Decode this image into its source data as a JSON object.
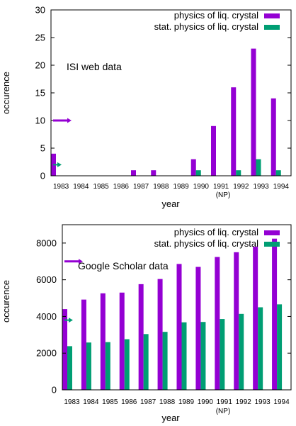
{
  "colors": {
    "series1": "#9400d3",
    "series2": "#009e73"
  },
  "chart_data": [
    {
      "type": "bar",
      "categories": [
        "1983",
        "1984",
        "1985",
        "1986",
        "1987",
        "1988",
        "1989",
        "1990",
        "1991",
        "1992",
        "1993",
        "1994"
      ],
      "series": [
        {
          "name": "physics of liq. crystal",
          "values": [
            4,
            0,
            0,
            0,
            1,
            1,
            0,
            3,
            9,
            16,
            23,
            14
          ]
        },
        {
          "name": "stat. physics of liq. crystal",
          "values": [
            0,
            0,
            0,
            0,
            0,
            0,
            0,
            1,
            0,
            1,
            3,
            1
          ]
        }
      ],
      "title": "",
      "xlabel": "year",
      "ylabel": "occurence",
      "ylim": [
        0,
        30
      ],
      "yticks": [
        0,
        5,
        10,
        15,
        20,
        25,
        30
      ],
      "annotation": "ISI web data",
      "note": "(NP)",
      "note_category": "1991",
      "arrows": [
        {
          "series": 0,
          "value": 10
        },
        {
          "series": 1,
          "value": 2
        }
      ],
      "legend_position": "top-right",
      "grid": false
    },
    {
      "type": "bar",
      "categories": [
        "1983",
        "1984",
        "1985",
        "1986",
        "1987",
        "1988",
        "1989",
        "1990",
        "1991",
        "1992",
        "1993",
        "1994"
      ],
      "series": [
        {
          "name": "physics of liq. crystal",
          "values": [
            4400,
            4920,
            5260,
            5300,
            5760,
            6040,
            6860,
            6700,
            7240,
            7500,
            7800,
            8240
          ]
        },
        {
          "name": "stat. physics of liq. crystal",
          "values": [
            2380,
            2580,
            2600,
            2760,
            3040,
            3160,
            3680,
            3700,
            3860,
            4140,
            4500,
            4660
          ]
        }
      ],
      "title": "",
      "xlabel": "year",
      "ylabel": "occurence",
      "ylim": [
        0,
        9000
      ],
      "yticks": [
        0,
        2000,
        4000,
        6000,
        8000
      ],
      "annotation": "Google Scholar data",
      "note": "(NP)",
      "note_category": "1991",
      "arrows": [
        {
          "series": 0,
          "value": 7000
        },
        {
          "series": 1,
          "value": 3800
        }
      ],
      "legend_position": "top-right",
      "grid": false
    }
  ]
}
